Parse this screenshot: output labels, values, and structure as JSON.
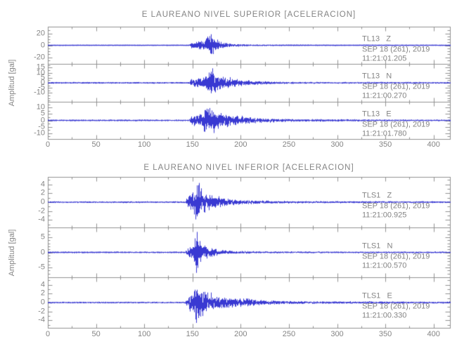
{
  "colors": {
    "waveform": "#2323cd",
    "axis": "#909090",
    "text": "#848484"
  },
  "chart_data": [
    {
      "type": "line",
      "title": "E LAUREANO NIVEL SUPERIOR [ACELERACION]",
      "ylabel": "Amplitud [gal]",
      "xlabel": "",
      "grid": false,
      "legend": "none",
      "x_range": [
        0,
        417
      ],
      "x_ticks": [
        0,
        50,
        100,
        150,
        200,
        250,
        300,
        350,
        400
      ],
      "x_minor_step": 25,
      "traces": [
        {
          "station": "TL13",
          "component": "Z",
          "label": "TL13   Z",
          "date": "SEP 18 (261), 2019",
          "time": "11:21:01.205",
          "y_ticks": [
            20,
            0,
            -20
          ],
          "y_minor_step": 5,
          "y_half_range": 30,
          "peak_gal": 25,
          "peak_t": 169,
          "envelope": [
            [
              0,
              0.45
            ],
            [
              146,
              0.5
            ],
            [
              149,
              5
            ],
            [
              155,
              6
            ],
            [
              163,
              9
            ],
            [
              168,
              25
            ],
            [
              172,
              14
            ],
            [
              178,
              6
            ],
            [
              188,
              3
            ],
            [
              205,
              1.6
            ],
            [
              235,
              0.9
            ],
            [
              270,
              0.6
            ],
            [
              417,
              0.45
            ]
          ],
          "seed": 11
        },
        {
          "station": "TL13",
          "component": "N",
          "label": "TL13   N",
          "date": "SEP 18 (261), 2019",
          "time": "11:21:00.270",
          "y_ticks": [
            15,
            10,
            5,
            0,
            -5,
            -10
          ],
          "y_minor_step": 2.5,
          "y_half_range": 18,
          "peak_gal": 15,
          "peak_t": 170,
          "envelope": [
            [
              0,
              0.5
            ],
            [
              146,
              0.55
            ],
            [
              149,
              4
            ],
            [
              156,
              4.5
            ],
            [
              164,
              8
            ],
            [
              170,
              15
            ],
            [
              176,
              8
            ],
            [
              184,
              6
            ],
            [
              194,
              4
            ],
            [
              208,
              2.2
            ],
            [
              235,
              1.2
            ],
            [
              270,
              0.8
            ],
            [
              417,
              0.55
            ]
          ],
          "seed": 22
        },
        {
          "station": "TL13",
          "component": "E",
          "label": "TL13   E",
          "date": "SEP 18 (261), 2019",
          "time": "11:21:01.780",
          "y_ticks": [
            10,
            5,
            0,
            -5,
            -10
          ],
          "y_minor_step": 2.5,
          "y_half_range": 14,
          "peak_gal": 12,
          "peak_t": 169,
          "envelope": [
            [
              0,
              0.4
            ],
            [
              146,
              0.45
            ],
            [
              149,
              3.5
            ],
            [
              158,
              4.5
            ],
            [
              166,
              12
            ],
            [
              172,
              9
            ],
            [
              180,
              6
            ],
            [
              192,
              4
            ],
            [
              205,
              2.6
            ],
            [
              225,
              1.6
            ],
            [
              255,
              1
            ],
            [
              417,
              0.5
            ]
          ],
          "seed": 33
        }
      ]
    },
    {
      "type": "line",
      "title": "E LAUREANO NIVEL INFERIOR [ACELERACION]",
      "ylabel": "Amplitud [gal]",
      "xlabel": "",
      "grid": false,
      "legend": "none",
      "x_range": [
        0,
        417
      ],
      "x_ticks": [
        0,
        50,
        100,
        150,
        200,
        250,
        300,
        350,
        400
      ],
      "x_minor_step": 25,
      "traces": [
        {
          "station": "TLS1",
          "component": "Z",
          "label": "TLS1   Z",
          "date": "SEP 18 (261), 2019",
          "time": "11:21:00.925",
          "y_ticks": [
            4,
            2,
            0,
            -2,
            -4
          ],
          "y_minor_step": 1,
          "y_half_range": 5.5,
          "peak_gal": 4.8,
          "peak_t": 155,
          "envelope": [
            [
              0,
              0.15
            ],
            [
              142,
              0.18
            ],
            [
              145,
              1.2
            ],
            [
              150,
              2.2
            ],
            [
              155,
              4.8
            ],
            [
              160,
              2.4
            ],
            [
              168,
              1.6
            ],
            [
              180,
              1.0
            ],
            [
              195,
              0.55
            ],
            [
              220,
              0.35
            ],
            [
              260,
              0.25
            ],
            [
              417,
              0.18
            ]
          ],
          "seed": 44
        },
        {
          "station": "TLS1",
          "component": "N",
          "label": "TLS1   N",
          "date": "SEP 18 (261), 2019",
          "time": "11:21:00.570",
          "y_ticks": [
            5,
            0,
            -5
          ],
          "y_minor_step": 1,
          "y_half_range": 8,
          "peak_gal": 7,
          "peak_t": 154,
          "envelope": [
            [
              0,
              0.15
            ],
            [
              142,
              0.18
            ],
            [
              146,
              1.5
            ],
            [
              150,
              2.5
            ],
            [
              154,
              7
            ],
            [
              159,
              2.6
            ],
            [
              168,
              1.4
            ],
            [
              180,
              0.8
            ],
            [
              195,
              0.45
            ],
            [
              230,
              0.3
            ],
            [
              417,
              0.2
            ]
          ],
          "seed": 55
        },
        {
          "station": "TLS1",
          "component": "E",
          "label": "TLS1   E",
          "date": "SEP 18 (261), 2019",
          "time": "11:21:00.330",
          "y_ticks": [
            4,
            2,
            0,
            -2,
            -4
          ],
          "y_minor_step": 1,
          "y_half_range": 5.5,
          "peak_gal": 5,
          "peak_t": 155,
          "envelope": [
            [
              0,
              0.15
            ],
            [
              142,
              0.18
            ],
            [
              146,
              1.6
            ],
            [
              151,
              2.4
            ],
            [
              155,
              5
            ],
            [
              161,
              2.6
            ],
            [
              170,
              1.8
            ],
            [
              182,
              1.3
            ],
            [
              200,
              0.9
            ],
            [
              225,
              0.5
            ],
            [
              260,
              0.3
            ],
            [
              417,
              0.2
            ]
          ],
          "seed": 66
        }
      ]
    }
  ]
}
